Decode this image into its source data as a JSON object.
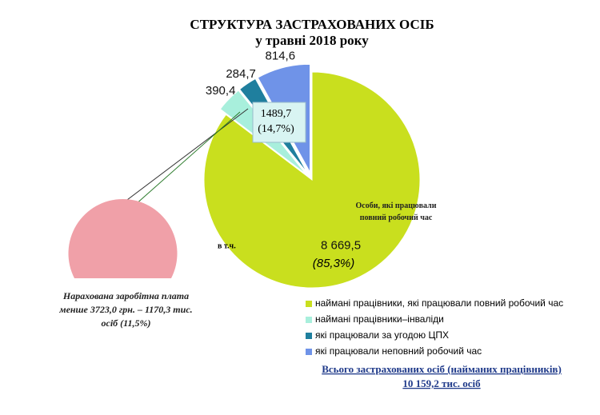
{
  "chart_data": {
    "type": "pie",
    "title": "СТРУКТУРА ЗАСТРАХОВАНИХ ОСІБ",
    "subtitle": "у травні 2018 року",
    "categories": [
      "наймані працівники, які працювали повний робочий час",
      "наймані працівники–інваліди",
      "які працювали за угодою ЦПХ",
      "які працювали неповний робочий час"
    ],
    "values": [
      8669.5,
      390.4,
      284.7,
      814.6
    ],
    "value_labels": [
      "8 669,5",
      "390,4",
      "284,7",
      "814,6"
    ],
    "colors": [
      "#c9df1e",
      "#a8efdc",
      "#1f7f9e",
      "#6f93e8"
    ],
    "annotations": {
      "main_slice": "Особи, які працювали повний робочий час",
      "main_share": "(85,3%)",
      "other_total": "1489,7",
      "other_share": "(14,7%)",
      "including": "в т.ч.",
      "low_wage": "Нарахована заробітна плата менше 3723,0 грн. – 1170,3 тис. осіб (11,5%)",
      "total_caption": "Всього застрахованих  осіб (найманих працівників)",
      "total_value": "10 159,2 тис. осіб"
    }
  }
}
